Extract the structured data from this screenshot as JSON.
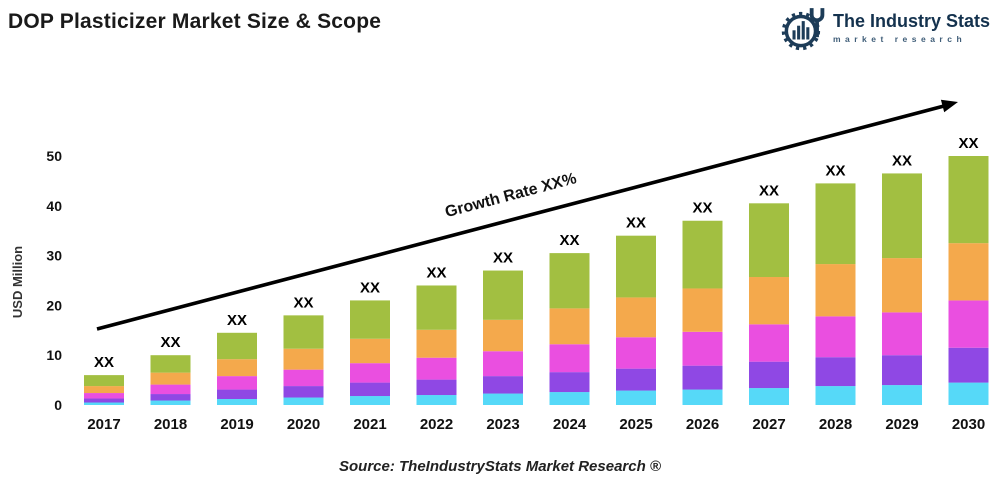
{
  "header": {
    "title": "DOP Plasticizer Market Size & Scope",
    "brand": {
      "name": "The Industry Stats",
      "tagline": "market research",
      "color": "#14324e"
    }
  },
  "annotations": {
    "growth_label": "Growth Rate XX%",
    "bar_value_label": "XX"
  },
  "footer": {
    "source": "Source: TheIndustryStats Market Research ®"
  },
  "chart_data": {
    "type": "bar",
    "stacked": true,
    "title": "DOP Plasticizer Market Size & Scope",
    "ylabel": "USD Million",
    "xlabel": "",
    "ylim": [
      0,
      50
    ],
    "yticks": [
      0,
      10,
      20,
      30,
      40,
      50
    ],
    "grid": false,
    "legend_position": "none",
    "bar_label": "XX",
    "categories": [
      "2017",
      "2018",
      "2019",
      "2020",
      "2021",
      "2022",
      "2023",
      "2024",
      "2025",
      "2026",
      "2027",
      "2028",
      "2029",
      "2030"
    ],
    "totals_usd_million_estimated": [
      6,
      10,
      14.5,
      18,
      21,
      24,
      27,
      30.5,
      34,
      37,
      40.5,
      44.5,
      46.5,
      50
    ],
    "series": [
      {
        "name": "cyan",
        "color": "#56d9f8",
        "values": [
          0.5,
          0.9,
          1.2,
          1.5,
          1.8,
          2.0,
          2.3,
          2.6,
          2.9,
          3.1,
          3.4,
          3.8,
          4.0,
          4.5
        ]
      },
      {
        "name": "purple",
        "color": "#8f48e4",
        "values": [
          0.8,
          1.3,
          1.9,
          2.3,
          2.7,
          3.1,
          3.5,
          4.0,
          4.4,
          4.8,
          5.3,
          5.8,
          6.0,
          7.0
        ]
      },
      {
        "name": "magenta",
        "color": "#ea4fe0",
        "values": [
          1.1,
          1.9,
          2.7,
          3.3,
          3.9,
          4.4,
          5.0,
          5.6,
          6.3,
          6.8,
          7.5,
          8.2,
          8.6,
          9.5
        ]
      },
      {
        "name": "orange",
        "color": "#f4a94c",
        "values": [
          1.4,
          2.4,
          3.4,
          4.2,
          4.9,
          5.6,
          6.3,
          7.2,
          8.0,
          8.7,
          9.5,
          10.5,
          10.9,
          11.5
        ]
      },
      {
        "name": "green",
        "color": "#a2bf41",
        "values": [
          2.2,
          3.5,
          5.3,
          6.7,
          7.7,
          8.9,
          9.9,
          11.1,
          12.4,
          13.6,
          14.8,
          16.2,
          17.0,
          17.5
        ]
      }
    ]
  }
}
